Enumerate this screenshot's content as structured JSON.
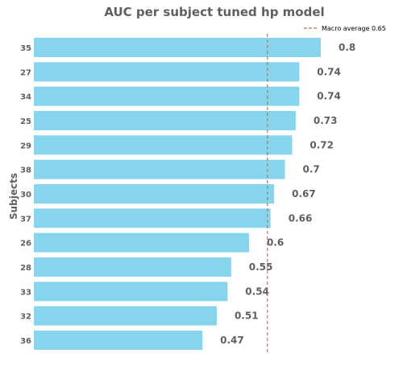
{
  "chart_data": {
    "type": "bar",
    "orientation": "horizontal",
    "title": "AUC per subject tuned hp model",
    "ylabel": "Subjects",
    "xlabel": "",
    "categories": [
      "35",
      "27",
      "34",
      "25",
      "29",
      "38",
      "30",
      "37",
      "26",
      "28",
      "33",
      "32",
      "36"
    ],
    "values": [
      0.8,
      0.74,
      0.74,
      0.73,
      0.72,
      0.7,
      0.67,
      0.66,
      0.6,
      0.55,
      0.54,
      0.51,
      0.47
    ],
    "value_labels": [
      "0.8",
      "0.74",
      "0.74",
      "0.73",
      "0.72",
      "0.7",
      "0.67",
      "0.66",
      "0.6",
      "0.55",
      "0.54",
      "0.51",
      "0.47"
    ],
    "xlim": [
      0,
      0.8
    ],
    "reference_line": {
      "label": "Macro average 0.65",
      "value": 0.65,
      "style": "dashed",
      "color": "#e8604c"
    },
    "bar_color": "#87d4ed",
    "text_color": "#5f5f5f",
    "grid": false,
    "legend_position": "top-right"
  }
}
